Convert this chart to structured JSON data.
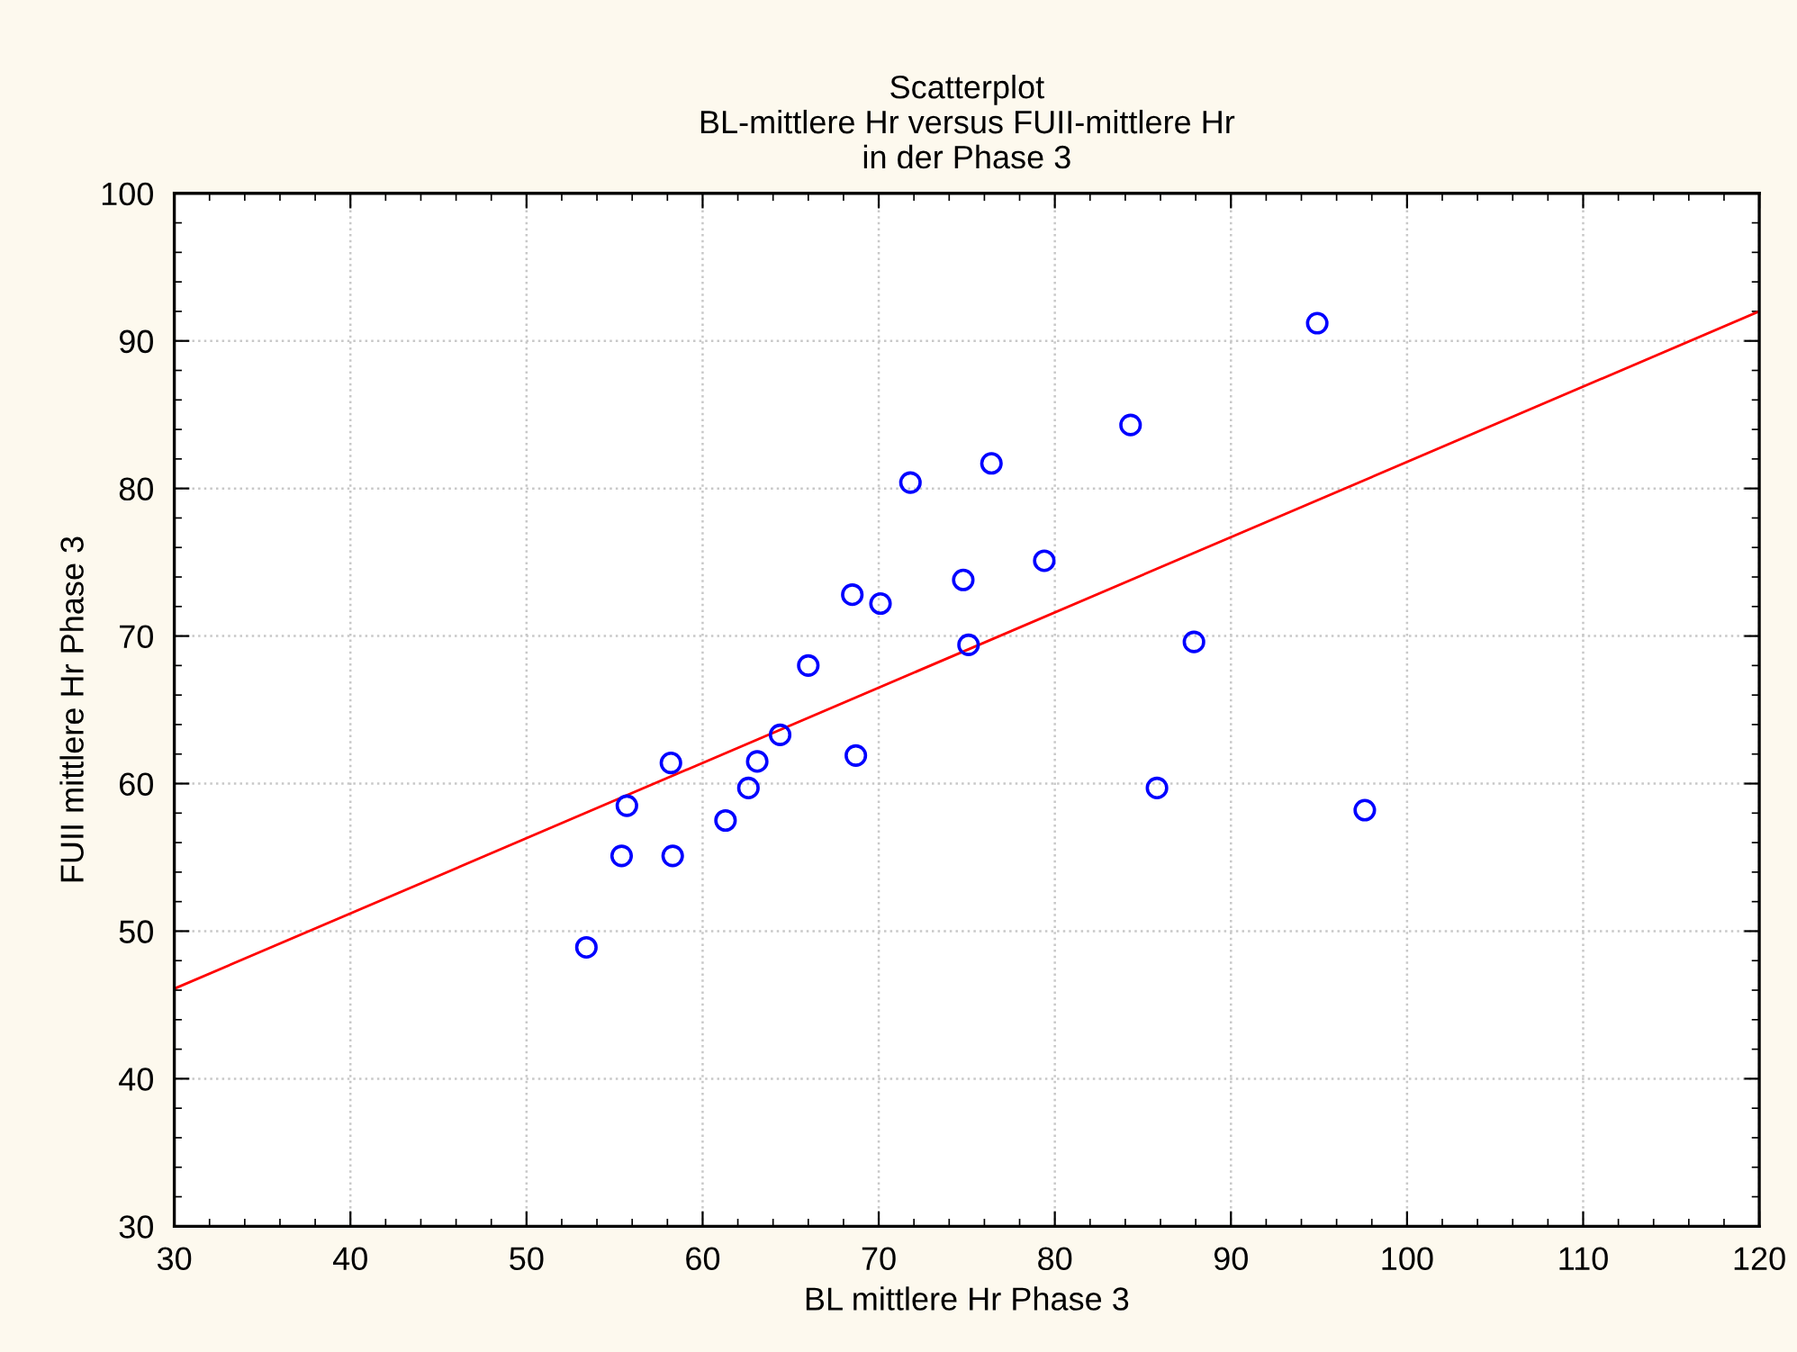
{
  "chart_data": {
    "type": "scatter",
    "title": "Scatterplot\nBL-mittlere Hr versus FUII-mittlere Hr\nin der Phase 3",
    "xlabel": "BL mittlere Hr Phase 3",
    "ylabel": "FUII mittlere Hr Phase 3",
    "x": [
      53.4,
      55.4,
      58.3,
      55.7,
      58.2,
      61.3,
      62.6,
      63.1,
      64.4,
      68.7,
      66.0,
      68.5,
      70.1,
      71.8,
      76.4,
      84.3,
      74.8,
      79.4,
      75.1,
      87.9,
      85.8,
      94.9,
      97.6
    ],
    "series": [
      {
        "color": "#0000ff",
        "marker": "circle",
        "values": [
          48.9,
          55.1,
          55.1,
          58.5,
          61.4,
          57.5,
          59.7,
          61.5,
          63.3,
          61.9,
          68.0,
          72.8,
          72.2,
          80.4,
          81.7,
          84.3,
          73.8,
          75.1,
          69.4,
          69.6,
          59.7,
          91.2,
          58.2
        ]
      },
      {
        "type": "line",
        "color": "#ff0000",
        "x": [
          30,
          120
        ],
        "values": [
          46.1,
          92.0
        ],
        "line_style": "solid"
      }
    ],
    "xlim": [
      30,
      120
    ],
    "ylim": [
      30,
      100
    ],
    "xticks": [
      30,
      40,
      50,
      60,
      70,
      80,
      90,
      100,
      110,
      120
    ],
    "yticks": [
      30,
      40,
      50,
      60,
      70,
      80,
      90,
      100
    ],
    "grid": true
  }
}
